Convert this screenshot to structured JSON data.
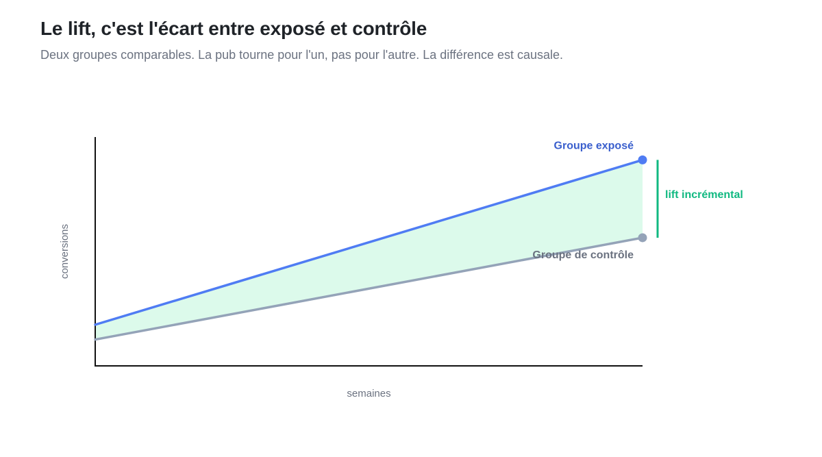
{
  "header": {
    "title": "Le lift, c'est l'écart entre exposé et contrôle",
    "subtitle": "Deux groupes comparables. La pub tourne pour l'un, pas pour l'autre. La différence est causale."
  },
  "chart_data": {
    "type": "line",
    "xlabel": "semaines",
    "ylabel": "conversions",
    "x": [
      0,
      1
    ],
    "xlim": [
      0,
      1
    ],
    "ylim": [
      0,
      100
    ],
    "grid": false,
    "series": [
      {
        "name": "Groupe exposé",
        "values": [
          18,
          90
        ],
        "color": "#4f7cf3",
        "label_color": "#3a5fcd"
      },
      {
        "name": "Groupe de contrôle",
        "values": [
          11.5,
          56
        ],
        "color": "#94a3b8",
        "label_color": "#6b7280"
      }
    ],
    "fill_between": {
      "color": "#dcfaeb"
    },
    "annotation": {
      "text": "lift incrémental",
      "color": "#10b981"
    }
  }
}
